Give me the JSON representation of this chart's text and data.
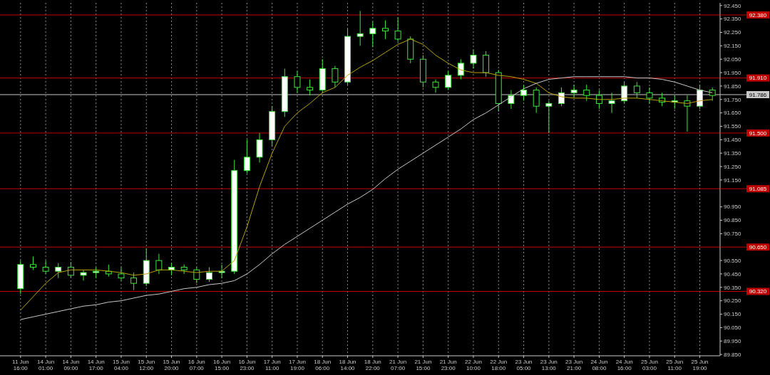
{
  "chart_data": {
    "type": "candlestick",
    "color": "#3ee63e",
    "categories": [
      "11 Jun 16:00",
      null,
      "14 Jun 01:00",
      null,
      "14 Jun 09:00",
      null,
      "14 Jun 17:00",
      null,
      "15 Jun 04:00",
      null,
      "15 Jun 12:00",
      null,
      "15 Jun 20:00",
      null,
      "16 Jun 07:00",
      null,
      "16 Jun 15:00",
      null,
      "16 Jun 23:00",
      null,
      "17 Jun 11:00",
      null,
      "17 Jun 19:00",
      null,
      "18 Jun 06:00",
      null,
      "18 Jun 14:00",
      null,
      "18 Jun 22:00",
      null,
      "21 Jun 07:00",
      null,
      "21 Jun 15:00",
      null,
      "21 Jun 23:00",
      null,
      "22 Jun 10:00",
      null,
      "22 Jun 18:00",
      null,
      "23 Jun 05:00",
      null,
      "23 Jun 13:00",
      null,
      "23 Jun 21:00",
      null,
      "24 Jun 08:00",
      null,
      "24 Jun 16:00",
      null,
      "25 Jun 03:00",
      null,
      "25 Jun 11:00",
      null,
      "25 Jun 19:00",
      null
    ],
    "ohlc": [
      [
        90.34,
        90.55,
        90.3,
        90.52
      ],
      [
        90.52,
        90.58,
        90.48,
        90.5
      ],
      [
        90.5,
        90.55,
        90.45,
        90.47
      ],
      [
        90.47,
        90.53,
        90.42,
        90.5
      ],
      [
        90.5,
        90.54,
        90.42,
        90.44
      ],
      [
        90.44,
        90.48,
        90.4,
        90.46
      ],
      [
        90.46,
        90.5,
        90.42,
        90.47
      ],
      [
        90.47,
        90.52,
        90.43,
        90.45
      ],
      [
        90.45,
        90.5,
        90.4,
        90.42
      ],
      [
        90.42,
        90.46,
        90.33,
        90.38
      ],
      [
        90.38,
        90.64,
        90.36,
        90.55
      ],
      [
        90.55,
        90.6,
        90.45,
        90.48
      ],
      [
        90.48,
        90.53,
        90.44,
        90.5
      ],
      [
        90.5,
        90.52,
        90.45,
        90.48
      ],
      [
        90.48,
        90.5,
        90.38,
        90.41
      ],
      [
        90.41,
        90.5,
        90.39,
        90.46
      ],
      [
        90.46,
        90.52,
        90.42,
        90.47
      ],
      [
        90.47,
        91.3,
        90.45,
        91.22
      ],
      [
        91.22,
        91.45,
        91.2,
        91.32
      ],
      [
        91.32,
        91.5,
        91.28,
        91.45
      ],
      [
        91.45,
        91.7,
        91.4,
        91.66
      ],
      [
        91.66,
        91.98,
        91.62,
        91.92
      ],
      [
        91.92,
        91.96,
        91.8,
        91.84
      ],
      [
        91.84,
        91.9,
        91.78,
        91.82
      ],
      [
        91.82,
        92.05,
        91.8,
        91.98
      ],
      [
        91.98,
        92.0,
        91.84,
        91.88
      ],
      [
        91.88,
        92.28,
        91.86,
        92.22
      ],
      [
        92.22,
        92.41,
        92.15,
        92.24
      ],
      [
        92.24,
        92.33,
        92.14,
        92.28
      ],
      [
        92.28,
        92.34,
        92.2,
        92.26
      ],
      [
        92.26,
        92.36,
        92.18,
        92.2
      ],
      [
        92.2,
        92.22,
        92.02,
        92.05
      ],
      [
        92.05,
        92.08,
        91.84,
        91.88
      ],
      [
        91.88,
        91.9,
        91.8,
        91.84
      ],
      [
        91.84,
        91.96,
        91.82,
        91.93
      ],
      [
        91.93,
        92.05,
        91.9,
        92.02
      ],
      [
        92.02,
        92.12,
        91.98,
        92.08
      ],
      [
        92.08,
        92.11,
        91.92,
        91.95
      ],
      [
        91.95,
        91.97,
        91.66,
        91.72
      ],
      [
        91.72,
        91.82,
        91.68,
        91.78
      ],
      [
        91.78,
        91.86,
        91.74,
        91.82
      ],
      [
        91.82,
        91.84,
        91.65,
        91.7
      ],
      [
        91.7,
        91.74,
        91.5,
        91.72
      ],
      [
        91.72,
        91.84,
        91.7,
        91.8
      ],
      [
        91.8,
        91.86,
        91.76,
        91.82
      ],
      [
        91.82,
        91.86,
        91.74,
        91.78
      ],
      [
        91.78,
        91.82,
        91.68,
        91.72
      ],
      [
        91.72,
        91.8,
        91.65,
        91.74
      ],
      [
        91.74,
        91.88,
        91.72,
        91.85
      ],
      [
        91.85,
        91.88,
        91.76,
        91.8
      ],
      [
        91.8,
        91.84,
        91.72,
        91.76
      ],
      [
        91.76,
        91.8,
        91.7,
        91.73
      ],
      [
        91.73,
        91.78,
        91.68,
        91.74
      ],
      [
        91.74,
        91.78,
        91.51,
        91.7
      ],
      [
        91.7,
        91.86,
        91.68,
        91.82
      ],
      [
        91.82,
        91.84,
        91.74,
        91.78
      ]
    ],
    "series": [
      {
        "type": "line",
        "color": "#b8a400",
        "values": [
          90.18,
          90.28,
          90.38,
          90.46,
          90.48,
          90.48,
          90.48,
          90.47,
          90.46,
          90.44,
          90.45,
          90.48,
          90.48,
          90.47,
          90.46,
          90.47,
          90.47,
          90.55,
          90.8,
          91.1,
          91.35,
          91.55,
          91.65,
          91.72,
          91.8,
          91.84,
          91.93,
          91.99,
          92.04,
          92.1,
          92.16,
          92.2,
          92.16,
          92.08,
          92.02,
          91.97,
          91.95,
          91.95,
          91.93,
          91.92,
          91.9,
          91.87,
          91.8,
          91.77,
          91.76,
          91.76,
          91.75,
          91.75,
          91.76,
          91.76,
          91.75,
          91.74,
          91.73,
          91.72,
          91.74,
          91.75
        ]
      },
      {
        "type": "line",
        "color": "#c8c8c8",
        "values": [
          90.11,
          90.13,
          90.15,
          90.17,
          90.19,
          90.21,
          90.22,
          90.24,
          90.25,
          90.27,
          90.29,
          90.3,
          90.32,
          90.34,
          90.35,
          90.37,
          90.38,
          90.4,
          90.45,
          90.52,
          90.6,
          90.67,
          90.73,
          90.79,
          90.85,
          90.91,
          90.97,
          91.02,
          91.08,
          91.16,
          91.23,
          91.29,
          91.35,
          91.41,
          91.47,
          91.53,
          91.6,
          91.65,
          91.71,
          91.77,
          91.83,
          91.87,
          91.9,
          91.91,
          91.92,
          91.92,
          91.92,
          91.92,
          91.92,
          91.91,
          91.91,
          91.9,
          91.88,
          91.85,
          91.82,
          91.8
        ]
      }
    ],
    "ylim": [
      89.84,
      92.47
    ],
    "yticks": [
      {
        "value": 89.85,
        "label": "89.850"
      },
      {
        "value": 89.95,
        "label": "89.950"
      },
      {
        "value": 90.05,
        "label": "90.050"
      },
      {
        "value": 90.15,
        "label": "90.150"
      },
      {
        "value": 90.25,
        "label": "90.250"
      },
      {
        "value": 90.35,
        "label": "90.350"
      },
      {
        "value": 90.45,
        "label": "90.450"
      },
      {
        "value": 90.55,
        "label": "90.550"
      },
      {
        "value": 90.75,
        "label": "90.750"
      },
      {
        "value": 90.85,
        "label": "90.850"
      },
      {
        "value": 90.95,
        "label": "90.950"
      },
      {
        "value": 91.15,
        "label": "91.150"
      },
      {
        "value": 91.25,
        "label": "91.250"
      },
      {
        "value": 91.35,
        "label": "91.350"
      },
      {
        "value": 91.45,
        "label": "91.450"
      },
      {
        "value": 91.55,
        "label": "91.550"
      },
      {
        "value": 91.65,
        "label": "91.650"
      },
      {
        "value": 91.75,
        "label": "91.750"
      },
      {
        "value": 91.85,
        "label": "91.850"
      },
      {
        "value": 91.95,
        "label": "91.950"
      },
      {
        "value": 92.05,
        "label": "92.050"
      },
      {
        "value": 92.15,
        "label": "92.150"
      },
      {
        "value": 92.25,
        "label": "92.250"
      },
      {
        "value": 92.35,
        "label": "92.350"
      },
      {
        "value": 92.45,
        "label": "92.450"
      }
    ],
    "ref_lines": [
      {
        "axis": "y",
        "value": 92.38,
        "label": "92.380",
        "color": "#c00000"
      },
      {
        "axis": "y",
        "value": 91.91,
        "label": "91.910",
        "color": "#c00000"
      },
      {
        "axis": "y",
        "value": 91.5,
        "label": "91.500",
        "color": "#c00000"
      },
      {
        "axis": "y",
        "value": 91.085,
        "label": "91.085",
        "color": "#c00000"
      },
      {
        "axis": "y",
        "value": 90.65,
        "label": "90.650",
        "color": "#c00000"
      },
      {
        "axis": "y",
        "value": 90.32,
        "label": "90.320",
        "color": "#c00000"
      },
      {
        "axis": "y",
        "value": 91.786,
        "label": "91.786",
        "color": "#c8c8c8"
      }
    ],
    "grid": "x"
  }
}
